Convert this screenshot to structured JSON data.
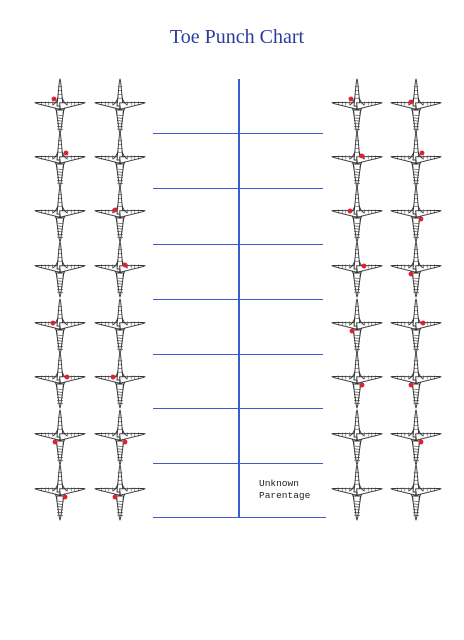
{
  "title": "Toe Punch Chart",
  "unknown_label": [
    "Unknown",
    "Parentage"
  ],
  "colors": {
    "title": "#2a3b9c",
    "lines": "#3d5bd0",
    "punch": "#e0202a",
    "foot_outline": "#333333"
  },
  "punch_codes": [
    "L1",
    "L2",
    "L3",
    "L4",
    "R1",
    "R2",
    "R3",
    "R4"
  ],
  "rows": [
    {
      "foot1": [
        "L1"
      ],
      "foot2": [],
      "foot3": [
        "L1"
      ],
      "foot4": [
        "L2"
      ]
    },
    {
      "foot1": [
        "R1"
      ],
      "foot2": [],
      "foot3": [
        "R2"
      ],
      "foot4": [
        "R1"
      ]
    },
    {
      "foot1": [],
      "foot2": [
        "L2"
      ],
      "foot3": [
        "L3"
      ],
      "foot4": [
        "R4"
      ]
    },
    {
      "foot1": [],
      "foot2": [
        "R2"
      ],
      "foot3": [
        "R3"
      ],
      "foot4": [
        "L4"
      ]
    },
    {
      "foot1": [
        "L3"
      ],
      "foot2": [],
      "foot3": [
        "L4"
      ],
      "foot4": [
        "R3"
      ]
    },
    {
      "foot1": [
        "R3"
      ],
      "foot2": [
        "L3"
      ],
      "foot3": [
        "R4"
      ],
      "foot4": [
        "L4"
      ]
    },
    {
      "foot1": [
        "L4"
      ],
      "foot2": [
        "R4"
      ],
      "foot3": [],
      "foot4": [
        "R4"
      ]
    },
    {
      "foot1": [
        "R4"
      ],
      "foot2": [
        "L4"
      ],
      "foot3": [],
      "foot4": []
    }
  ]
}
